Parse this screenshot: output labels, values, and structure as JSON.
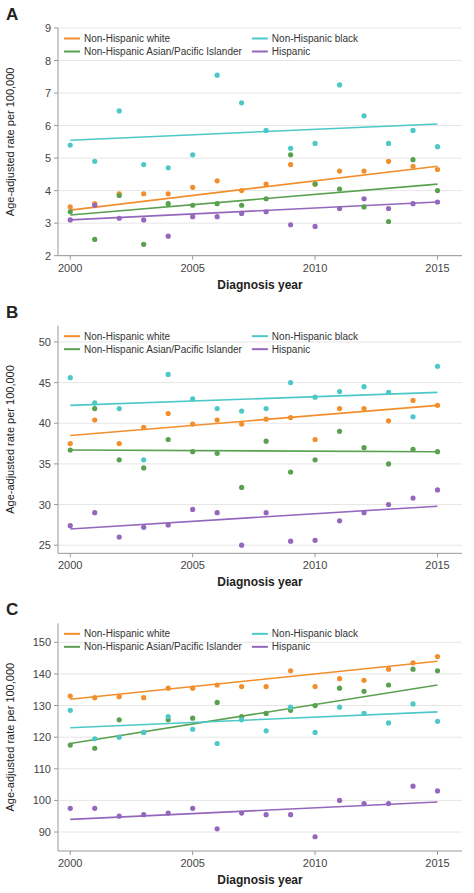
{
  "chart_data": [
    {
      "type": "scatter",
      "title": "A",
      "xlabel": "Diagnosis year",
      "ylabel": "Age-adjusted rate per 100,000",
      "xlim": [
        1999.5,
        2016
      ],
      "ylim": [
        2,
        9
      ],
      "xticks": [
        2000,
        2005,
        2010,
        2015
      ],
      "yticks": [
        2,
        3,
        4,
        5,
        6,
        7,
        8,
        9
      ],
      "grid": true,
      "legend": "upper left",
      "x": [
        2000,
        2001,
        2002,
        2003,
        2004,
        2005,
        2006,
        2007,
        2008,
        2009,
        2010,
        2011,
        2012,
        2013,
        2014,
        2015
      ],
      "series": [
        {
          "name": "Non-Hispanic white",
          "color": "#F28E2B",
          "values": [
            3.5,
            3.6,
            3.9,
            3.9,
            3.9,
            4.1,
            4.3,
            4.0,
            4.2,
            4.8,
            4.2,
            4.6,
            4.6,
            4.9,
            4.75,
            4.65
          ],
          "trend": {
            "x": [
              2000,
              2015
            ],
            "values": [
              3.4,
              4.75
            ]
          }
        },
        {
          "name": "Non-Hispanic Asian/Pacific Islander",
          "color": "#59A14F",
          "values": [
            3.35,
            2.5,
            3.85,
            2.35,
            3.6,
            3.55,
            3.6,
            3.55,
            3.75,
            5.1,
            4.2,
            4.05,
            3.5,
            3.05,
            4.95,
            4.0
          ],
          "trend": {
            "x": [
              2000,
              2015
            ],
            "values": [
              3.25,
              4.2
            ]
          }
        },
        {
          "name": "Non-Hispanic black",
          "color": "#4DC8C8",
          "values": [
            5.4,
            4.9,
            6.45,
            4.8,
            4.7,
            5.1,
            7.55,
            6.7,
            5.85,
            5.3,
            5.45,
            7.25,
            6.3,
            5.45,
            5.85,
            5.35
          ],
          "trend": {
            "x": [
              2000,
              2015
            ],
            "values": [
              5.55,
              6.05
            ]
          }
        },
        {
          "name": "Hispanic",
          "color": "#9467BD",
          "values": [
            3.1,
            3.55,
            3.15,
            3.1,
            2.6,
            3.2,
            3.2,
            3.3,
            3.35,
            2.95,
            2.9,
            3.45,
            3.75,
            3.45,
            3.6,
            3.65
          ],
          "trend": {
            "x": [
              2000,
              2015
            ],
            "values": [
              3.1,
              3.65
            ]
          }
        }
      ]
    },
    {
      "type": "scatter",
      "title": "B",
      "xlabel": "Diagnosis year",
      "ylabel": "Age-adjusted rate per 100,000",
      "xlim": [
        1999.5,
        2016
      ],
      "ylim": [
        24,
        52
      ],
      "xticks": [
        2000,
        2005,
        2010,
        2015
      ],
      "yticks": [
        25,
        30,
        35,
        40,
        45,
        50
      ],
      "grid": true,
      "legend": "upper left",
      "x": [
        2000,
        2001,
        2002,
        2003,
        2004,
        2005,
        2006,
        2007,
        2008,
        2009,
        2010,
        2011,
        2012,
        2013,
        2014,
        2015
      ],
      "series": [
        {
          "name": "Non-Hispanic white",
          "color": "#F28E2B",
          "values": [
            37.5,
            40.4,
            37.5,
            39.5,
            41.2,
            39.9,
            40.4,
            39.9,
            40.5,
            40.7,
            38.0,
            41.8,
            41.8,
            40.3,
            42.8,
            42.2
          ],
          "trend": {
            "x": [
              2000,
              2015
            ],
            "values": [
              38.5,
              42.2
            ]
          }
        },
        {
          "name": "Non-Hispanic Asian/Pacific Islander",
          "color": "#59A14F",
          "values": [
            36.7,
            41.8,
            35.5,
            34.5,
            38.0,
            36.5,
            36.3,
            32.1,
            37.8,
            34.0,
            35.5,
            39.0,
            37.0,
            35.0,
            36.8,
            36.5
          ],
          "trend": {
            "x": [
              2000,
              2015
            ],
            "values": [
              36.7,
              36.5
            ]
          }
        },
        {
          "name": "Non-Hispanic black",
          "color": "#4DC8C8",
          "values": [
            45.6,
            42.5,
            41.8,
            35.5,
            46.0,
            43.0,
            41.8,
            41.5,
            41.8,
            45.0,
            43.2,
            43.9,
            44.5,
            43.8,
            40.8,
            47.0
          ],
          "trend": {
            "x": [
              2000,
              2015
            ],
            "values": [
              42.2,
              43.8
            ]
          }
        },
        {
          "name": "Hispanic",
          "color": "#9467BD",
          "values": [
            27.4,
            29.0,
            26.0,
            27.2,
            27.5,
            29.4,
            29.0,
            25.0,
            29.0,
            25.5,
            25.6,
            28.0,
            29.0,
            30.0,
            30.8,
            31.8
          ],
          "trend": {
            "x": [
              2000,
              2015
            ],
            "values": [
              27.0,
              29.8
            ]
          }
        }
      ]
    },
    {
      "type": "scatter",
      "title": "C",
      "xlabel": "Diagnosis year",
      "ylabel": "Age-adjusted rate per 100,000",
      "xlim": [
        1999.5,
        2016
      ],
      "ylim": [
        84,
        156
      ],
      "xticks": [
        2000,
        2005,
        2010,
        2015
      ],
      "yticks": [
        90,
        100,
        110,
        120,
        130,
        140,
        150
      ],
      "grid": true,
      "legend": "upper left",
      "x": [
        2000,
        2001,
        2002,
        2003,
        2004,
        2005,
        2006,
        2007,
        2008,
        2009,
        2010,
        2011,
        2012,
        2013,
        2014,
        2015
      ],
      "series": [
        {
          "name": "Non-Hispanic white",
          "color": "#F28E2B",
          "values": [
            133.0,
            132.5,
            132.8,
            132.5,
            135.5,
            135.5,
            136.5,
            136.0,
            136.0,
            141.0,
            136.0,
            138.5,
            138.0,
            141.5,
            143.5,
            145.5
          ],
          "trend": {
            "x": [
              2000,
              2015
            ],
            "values": [
              132.0,
              144.0
            ]
          }
        },
        {
          "name": "Non-Hispanic Asian/Pacific Islander",
          "color": "#59A14F",
          "values": [
            117.5,
            116.5,
            125.5,
            121.5,
            125.5,
            126.0,
            131.0,
            126.5,
            127.5,
            128.5,
            130.0,
            135.5,
            134.5,
            136.5,
            141.5,
            141.0
          ],
          "trend": {
            "x": [
              2000,
              2015
            ],
            "values": [
              118.0,
              136.5
            ]
          }
        },
        {
          "name": "Non-Hispanic black",
          "color": "#4DC8C8",
          "values": [
            128.5,
            119.5,
            120.0,
            121.5,
            126.5,
            122.5,
            118.0,
            125.5,
            122.0,
            129.5,
            121.5,
            129.5,
            127.5,
            124.5,
            130.5,
            125.0
          ],
          "trend": {
            "x": [
              2000,
              2015
            ],
            "values": [
              123.0,
              128.0
            ]
          }
        },
        {
          "name": "Hispanic",
          "color": "#9467BD",
          "values": [
            97.5,
            97.5,
            95.0,
            95.5,
            96.0,
            97.5,
            91.0,
            96.0,
            95.5,
            95.5,
            88.5,
            100.0,
            99.0,
            99.0,
            104.5,
            103.0
          ],
          "trend": {
            "x": [
              2000,
              2015
            ],
            "values": [
              94.0,
              99.5
            ]
          }
        }
      ]
    }
  ]
}
